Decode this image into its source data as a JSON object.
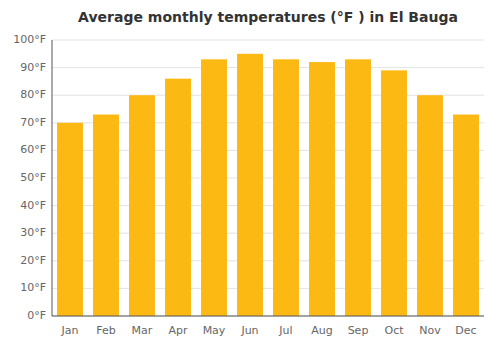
{
  "chart_data": {
    "type": "bar",
    "title": "Average monthly temperatures (°F ) in El Bauga",
    "categories": [
      "Jan",
      "Feb",
      "Mar",
      "Apr",
      "May",
      "Jun",
      "Jul",
      "Aug",
      "Sep",
      "Oct",
      "Nov",
      "Dec"
    ],
    "values": [
      70,
      73,
      80,
      86,
      93,
      95,
      93,
      92,
      93,
      89,
      80,
      73
    ],
    "color": "#FDB913",
    "ylim": [
      0,
      100
    ],
    "yticks": [
      {
        "value": 0,
        "label": "0°F"
      },
      {
        "value": 10,
        "label": "10°F"
      },
      {
        "value": 20,
        "label": "20°F"
      },
      {
        "value": 30,
        "label": "30°F"
      },
      {
        "value": 40,
        "label": "40°F"
      },
      {
        "value": 50,
        "label": "50°F"
      },
      {
        "value": 60,
        "label": "60°F"
      },
      {
        "value": 70,
        "label": "70°F"
      },
      {
        "value": 80,
        "label": "80°F"
      },
      {
        "value": 90,
        "label": "90°F"
      },
      {
        "value": 100,
        "label": "100°F"
      }
    ],
    "grid": true
  }
}
